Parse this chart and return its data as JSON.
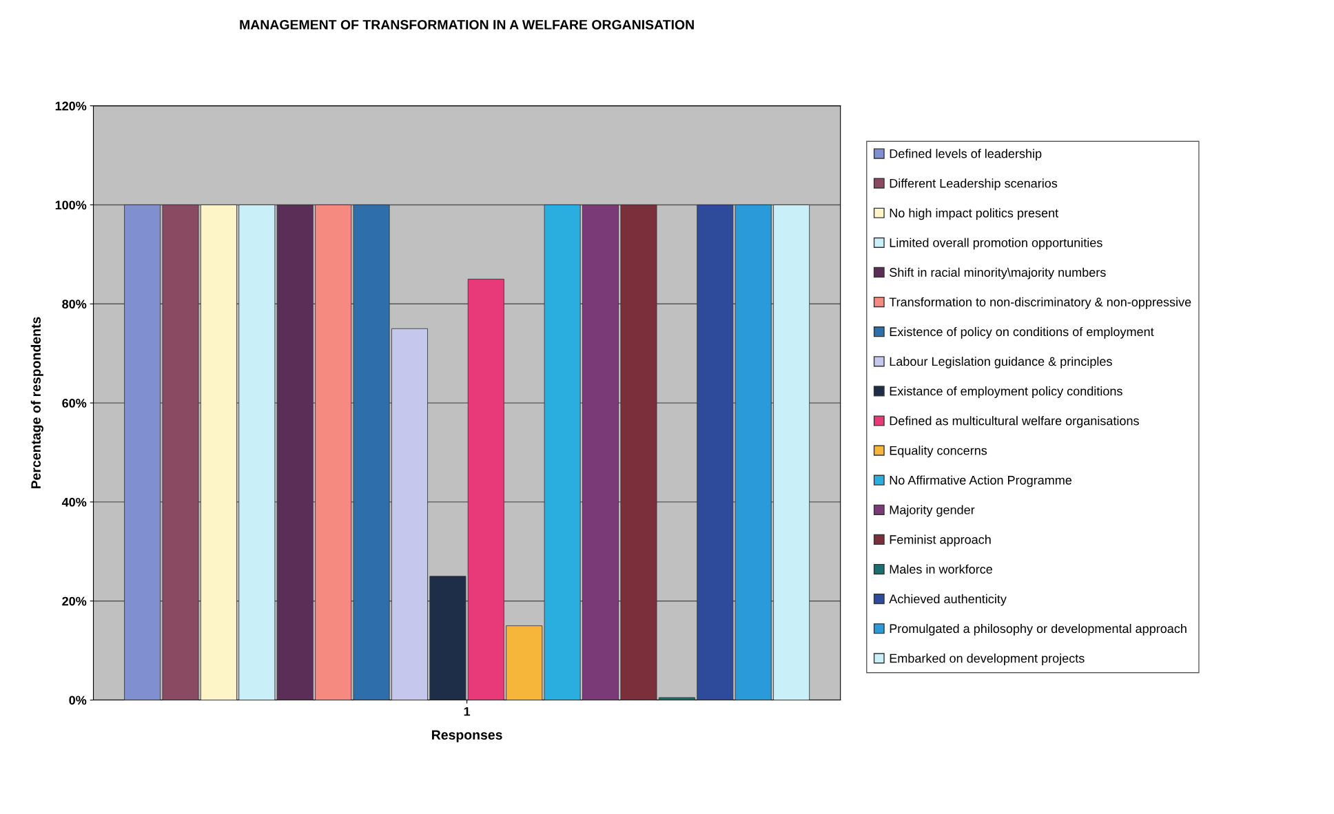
{
  "chart_data": {
    "type": "bar",
    "title": "MANAGEMENT OF TRANSFORMATION IN A WELFARE ORGANISATION",
    "xlabel": "Responses",
    "ylabel": "Percentage of respondents",
    "categories": [
      "1"
    ],
    "series": [
      {
        "name": "Defined levels of leadership",
        "color": "#7f8fd0",
        "values": [
          100
        ]
      },
      {
        "name": "Different Leadership scenarios",
        "color": "#8a4a62",
        "values": [
          100
        ]
      },
      {
        "name": "No high impact politics present",
        "color": "#fdf5c8",
        "values": [
          100
        ]
      },
      {
        "name": "Limited overall promotion opportunities",
        "color": "#c9f0f8",
        "values": [
          100
        ]
      },
      {
        "name": "Shift in racial minority\\majority numbers",
        "color": "#5a2e57",
        "values": [
          100
        ]
      },
      {
        "name": "Transformation to non-discriminatory & non-oppressive",
        "color": "#f58a80",
        "values": [
          100
        ]
      },
      {
        "name": "Existence of policy on conditions of employment",
        "color": "#2e6eaa",
        "values": [
          100
        ]
      },
      {
        "name": "Labour Legislation guidance & principles",
        "color": "#c5c8ec",
        "values": [
          75
        ]
      },
      {
        "name": "Existance of employment policy conditions",
        "color": "#1f2e48",
        "values": [
          25
        ]
      },
      {
        "name": "Defined as multicultural welfare organisations",
        "color": "#e83a78",
        "values": [
          85
        ]
      },
      {
        "name": "Equality concerns",
        "color": "#f6b63a",
        "values": [
          15
        ]
      },
      {
        "name": "No Affirmative Action Programme",
        "color": "#2aaee0",
        "values": [
          100
        ]
      },
      {
        "name": "Majority gender",
        "color": "#7a3a78",
        "values": [
          100
        ]
      },
      {
        "name": "Feminist approach",
        "color": "#7a2f3a",
        "values": [
          100
        ]
      },
      {
        "name": "Males in workforce",
        "color": "#1a7070",
        "values": [
          0.5
        ]
      },
      {
        "name": "Achieved authenticity",
        "color": "#2e4a9a",
        "values": [
          100
        ]
      },
      {
        "name": "Promulgated a philosophy or developmental approach",
        "color": "#2a9ad8",
        "values": [
          100
        ]
      },
      {
        "name": "Embarked on development projects",
        "color": "#c9f0f8",
        "values": [
          100
        ]
      }
    ],
    "ylim": [
      0,
      120
    ],
    "yticks": [
      {
        "value": 0,
        "label": "0%"
      },
      {
        "value": 20,
        "label": "20%"
      },
      {
        "value": 40,
        "label": "40%"
      },
      {
        "value": 60,
        "label": "60%"
      },
      {
        "value": 80,
        "label": "80%"
      },
      {
        "value": 100,
        "label": "100%"
      },
      {
        "value": 120,
        "label": "120%"
      }
    ],
    "grid": "y",
    "legend": "right"
  }
}
